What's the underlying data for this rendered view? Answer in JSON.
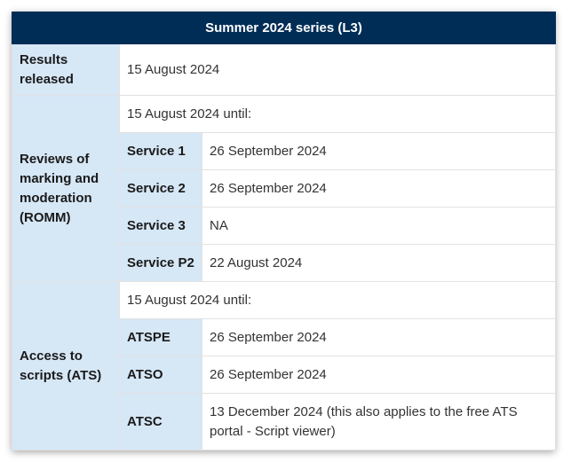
{
  "table": {
    "title": "Summer 2024 series (L3)",
    "results": {
      "label": "Results released",
      "value": "15 August 2024"
    },
    "romm": {
      "label": "Reviews of marking and moderation (ROMM)",
      "intro": "15 August 2024 until:",
      "services": [
        {
          "name": "Service 1",
          "date": "26 September 2024"
        },
        {
          "name": "Service 2",
          "date": "26 September 2024"
        },
        {
          "name": "Service 3",
          "date": "NA"
        },
        {
          "name": "Service P2",
          "date": "22 August 2024"
        }
      ]
    },
    "ats": {
      "label": "Access to scripts (ATS)",
      "intro": "15 August 2024 until:",
      "services": [
        {
          "name": "ATSPE",
          "date": "26 September 2024"
        },
        {
          "name": "ATSO",
          "date": "26 September 2024"
        },
        {
          "name": "ATSC",
          "date": "13 December 2024 (this also applies to the free ATS portal - Script viewer)"
        }
      ]
    }
  }
}
